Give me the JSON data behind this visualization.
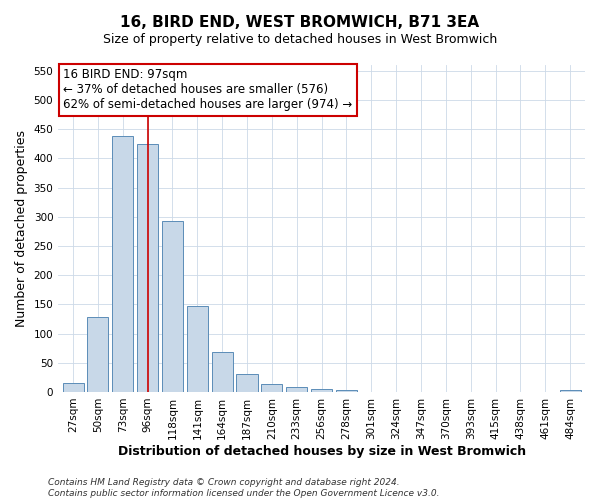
{
  "title": "16, BIRD END, WEST BROMWICH, B71 3EA",
  "subtitle": "Size of property relative to detached houses in West Bromwich",
  "xlabel": "Distribution of detached houses by size in West Bromwich",
  "ylabel": "Number of detached properties",
  "bar_labels": [
    "27sqm",
    "50sqm",
    "73sqm",
    "96sqm",
    "118sqm",
    "141sqm",
    "164sqm",
    "187sqm",
    "210sqm",
    "233sqm",
    "256sqm",
    "278sqm",
    "301sqm",
    "324sqm",
    "347sqm",
    "370sqm",
    "393sqm",
    "415sqm",
    "438sqm",
    "461sqm",
    "484sqm"
  ],
  "bar_values": [
    15,
    128,
    438,
    425,
    292,
    147,
    68,
    30,
    13,
    8,
    5,
    3,
    0,
    0,
    0,
    0,
    0,
    0,
    0,
    0,
    4
  ],
  "bar_color": "#c8d8e8",
  "bar_edge_color": "#5b8db8",
  "vline_x_index": 3,
  "vline_color": "#cc0000",
  "annotation_line1": "16 BIRD END: 97sqm",
  "annotation_line2": "← 37% of detached houses are smaller (576)",
  "annotation_line3": "62% of semi-detached houses are larger (974) →",
  "ylim": [
    0,
    560
  ],
  "yticks": [
    0,
    50,
    100,
    150,
    200,
    250,
    300,
    350,
    400,
    450,
    500,
    550
  ],
  "title_fontsize": 11,
  "subtitle_fontsize": 9,
  "axis_label_fontsize": 9,
  "tick_fontsize": 7.5,
  "annotation_fontsize": 8.5,
  "footer_fontsize": 6.5
}
